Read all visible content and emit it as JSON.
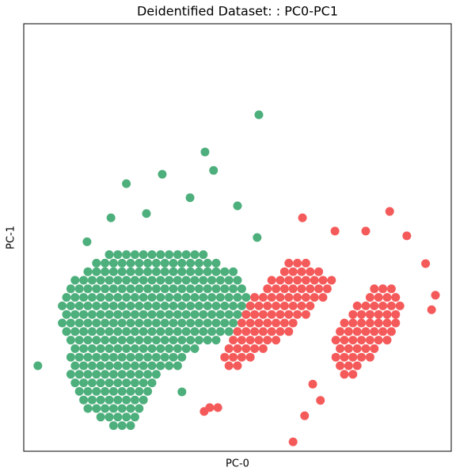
{
  "chart_data": {
    "type": "scatter",
    "title": "Deidentified Dataset: : PC0-PC1",
    "x_label": "PC-0",
    "y_label": "PC-1",
    "xlim": [
      0,
      100
    ],
    "ylim": [
      0,
      100
    ],
    "series": [
      {
        "color": "#4daf7c",
        "x": [
          20,
          22,
          24,
          26,
          28,
          30,
          32,
          34,
          36,
          38,
          40,
          42,
          17,
          19,
          21,
          23,
          25,
          27,
          29,
          31,
          33,
          35,
          37,
          39,
          41,
          43,
          45,
          15,
          17,
          19,
          21,
          23,
          25,
          27,
          29,
          31,
          33,
          35,
          37,
          39,
          41,
          43,
          45,
          47,
          49,
          12,
          14,
          16,
          18,
          20,
          22,
          24,
          26,
          28,
          30,
          32,
          34,
          36,
          38,
          40,
          42,
          44,
          46,
          48,
          50,
          11,
          13,
          15,
          17,
          19,
          21,
          23,
          25,
          27,
          29,
          31,
          33,
          35,
          37,
          39,
          41,
          43,
          45,
          47,
          49,
          51,
          10,
          12,
          14,
          16,
          18,
          20,
          22,
          24,
          26,
          28,
          30,
          32,
          34,
          36,
          38,
          40,
          42,
          44,
          46,
          48,
          50,
          52,
          9,
          11,
          13,
          15,
          17,
          19,
          21,
          23,
          25,
          27,
          29,
          31,
          33,
          35,
          37,
          39,
          41,
          43,
          45,
          47,
          49,
          51,
          53,
          10,
          12,
          14,
          16,
          18,
          20,
          22,
          24,
          26,
          28,
          30,
          32,
          34,
          36,
          38,
          40,
          42,
          44,
          46,
          48,
          50,
          52,
          9,
          11,
          13,
          15,
          17,
          19,
          21,
          23,
          25,
          27,
          29,
          31,
          33,
          35,
          37,
          39,
          41,
          43,
          45,
          47,
          49,
          10,
          12,
          14,
          16,
          18,
          20,
          22,
          24,
          26,
          28,
          30,
          32,
          34,
          36,
          38,
          40,
          42,
          44,
          46,
          48,
          11,
          13,
          15,
          17,
          19,
          21,
          23,
          25,
          27,
          29,
          31,
          33,
          35,
          37,
          39,
          41,
          43,
          45,
          12,
          14,
          16,
          18,
          20,
          22,
          24,
          26,
          28,
          30,
          32,
          34,
          36,
          38,
          40,
          11,
          13,
          15,
          17,
          19,
          21,
          23,
          25,
          27,
          29,
          31,
          33,
          35,
          37,
          12,
          14,
          16,
          18,
          20,
          22,
          24,
          26,
          28,
          30,
          32,
          34,
          36,
          11,
          13,
          15,
          17,
          19,
          21,
          23,
          25,
          27,
          29,
          31,
          12,
          14,
          16,
          18,
          20,
          22,
          24,
          26,
          28,
          30,
          13,
          15,
          17,
          19,
          21,
          23,
          25,
          27,
          29,
          14,
          16,
          18,
          20,
          22,
          24,
          26,
          28,
          15,
          17,
          19,
          21,
          23,
          25,
          27,
          18,
          20,
          22,
          24,
          26,
          21,
          23,
          25,
          55,
          42.4,
          3.3,
          37,
          32.4,
          24,
          44.4,
          20.4,
          50,
          54.6,
          14.8,
          38.9,
          28.7
        ],
        "values": [
          46,
          46,
          46,
          46,
          46,
          46,
          46,
          46,
          46,
          46,
          46,
          46,
          44,
          44,
          44,
          44,
          44,
          44,
          44,
          44,
          44,
          44,
          44,
          44,
          44,
          44,
          44,
          42,
          42,
          42,
          42,
          42,
          42,
          42,
          42,
          42,
          42,
          42,
          42,
          42,
          42,
          42,
          42,
          42,
          42,
          40,
          40,
          40,
          40,
          40,
          40,
          40,
          40,
          40,
          40,
          40,
          40,
          40,
          40,
          40,
          40,
          40,
          40,
          40,
          40,
          38,
          38,
          38,
          38,
          38,
          38,
          38,
          38,
          38,
          38,
          38,
          38,
          38,
          38,
          38,
          38,
          38,
          38,
          38,
          38,
          38,
          36,
          36,
          36,
          36,
          36,
          36,
          36,
          36,
          36,
          36,
          36,
          36,
          36,
          36,
          36,
          36,
          36,
          36,
          36,
          36,
          36,
          36,
          34,
          34,
          34,
          34,
          34,
          34,
          34,
          34,
          34,
          34,
          34,
          34,
          34,
          34,
          34,
          34,
          34,
          34,
          34,
          34,
          34,
          34,
          34,
          32,
          32,
          32,
          32,
          32,
          32,
          32,
          32,
          32,
          32,
          32,
          32,
          32,
          32,
          32,
          32,
          32,
          32,
          32,
          32,
          32,
          32,
          30,
          30,
          30,
          30,
          30,
          30,
          30,
          30,
          30,
          30,
          30,
          30,
          30,
          30,
          30,
          30,
          30,
          30,
          30,
          30,
          30,
          28,
          28,
          28,
          28,
          28,
          28,
          28,
          28,
          28,
          28,
          28,
          28,
          28,
          28,
          28,
          28,
          28,
          28,
          28,
          28,
          26,
          26,
          26,
          26,
          26,
          26,
          26,
          26,
          26,
          26,
          26,
          26,
          26,
          26,
          26,
          26,
          26,
          26,
          24,
          24,
          24,
          24,
          24,
          24,
          24,
          24,
          24,
          24,
          24,
          24,
          24,
          24,
          24,
          22,
          22,
          22,
          22,
          22,
          22,
          22,
          22,
          22,
          22,
          22,
          22,
          22,
          22,
          20,
          20,
          20,
          20,
          20,
          20,
          20,
          20,
          20,
          20,
          20,
          20,
          20,
          18,
          18,
          18,
          18,
          18,
          18,
          18,
          18,
          18,
          18,
          18,
          16,
          16,
          16,
          16,
          16,
          16,
          16,
          16,
          16,
          16,
          14,
          14,
          14,
          14,
          14,
          14,
          14,
          14,
          14,
          12,
          12,
          12,
          12,
          12,
          12,
          12,
          12,
          10,
          10,
          10,
          10,
          10,
          10,
          10,
          8,
          8,
          8,
          8,
          8,
          6,
          6,
          6,
          78.7,
          70,
          20,
          13.9,
          64.8,
          62.6,
          65.7,
          54.6,
          57.4,
          50,
          49,
          59.3,
          55.6
        ]
      },
      {
        "color": "#f55a5a",
        "x": [
          62,
          64,
          66,
          61,
          63,
          65,
          67,
          69,
          58,
          60,
          62,
          64,
          66,
          68,
          70,
          72,
          57,
          59,
          61,
          63,
          65,
          67,
          69,
          71,
          54,
          56,
          58,
          60,
          62,
          64,
          66,
          68,
          70,
          53,
          55,
          57,
          59,
          61,
          63,
          65,
          67,
          52,
          54,
          56,
          58,
          60,
          62,
          64,
          66,
          51,
          53,
          55,
          57,
          59,
          61,
          63,
          50,
          52,
          54,
          56,
          58,
          60,
          62,
          49,
          51,
          53,
          55,
          57,
          59,
          48,
          50,
          52,
          54,
          56,
          47,
          49,
          51,
          53,
          48,
          50,
          82,
          84,
          86,
          81,
          83,
          85,
          87,
          78,
          80,
          82,
          84,
          86,
          88,
          77,
          79,
          81,
          83,
          85,
          87,
          75,
          77,
          79,
          81,
          83,
          85,
          87,
          74,
          76,
          78,
          80,
          82,
          84,
          86,
          73,
          75,
          77,
          79,
          81,
          83,
          85,
          74,
          76,
          78,
          80,
          82,
          73,
          75,
          77,
          79,
          81,
          74,
          76,
          78,
          75,
          77,
          65.2,
          85.6,
          89.6,
          94,
          96.3,
          95.4,
          80,
          72.8,
          63,
          69.4,
          67.6,
          65.7,
          43.5,
          45.4,
          42.2
        ],
        "values": [
          44,
          44,
          44,
          42,
          42,
          42,
          42,
          42,
          40,
          40,
          40,
          40,
          40,
          40,
          40,
          40,
          38,
          38,
          38,
          38,
          38,
          38,
          38,
          38,
          36,
          36,
          36,
          36,
          36,
          36,
          36,
          36,
          36,
          34,
          34,
          34,
          34,
          34,
          34,
          34,
          34,
          32,
          32,
          32,
          32,
          32,
          32,
          32,
          32,
          30,
          30,
          30,
          30,
          30,
          30,
          30,
          28,
          28,
          28,
          28,
          28,
          28,
          28,
          26,
          26,
          26,
          26,
          26,
          26,
          24,
          24,
          24,
          24,
          24,
          22,
          22,
          22,
          22,
          20,
          20,
          38,
          38,
          38,
          36,
          36,
          36,
          36,
          34,
          34,
          34,
          34,
          34,
          34,
          32,
          32,
          32,
          32,
          32,
          32,
          30,
          30,
          30,
          30,
          30,
          30,
          30,
          28,
          28,
          28,
          28,
          28,
          28,
          28,
          26,
          26,
          26,
          26,
          26,
          26,
          26,
          24,
          24,
          24,
          24,
          24,
          22,
          22,
          22,
          22,
          22,
          20,
          20,
          20,
          18,
          18,
          54.6,
          56.1,
          50.4,
          43.9,
          36.5,
          33.1,
          51.5,
          51.5,
          2.2,
          11.9,
          15.7,
          8.3,
          10.2,
          10.2,
          9.3
        ]
      }
    ]
  }
}
